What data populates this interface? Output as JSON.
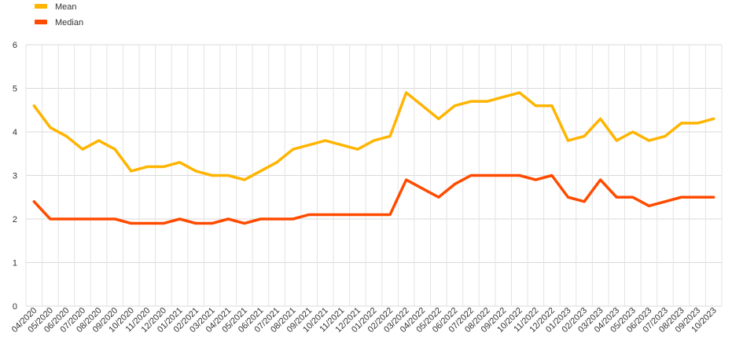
{
  "chart_data": {
    "type": "line",
    "x": [
      "04/2020",
      "05/2020",
      "06/2020",
      "07/2020",
      "08/2020",
      "09/2020",
      "10/2020",
      "11/2020",
      "12/2020",
      "01/2021",
      "02/2021",
      "03/2021",
      "04/2021",
      "05/2021",
      "06/2021",
      "07/2021",
      "08/2021",
      "09/2021",
      "10/2021",
      "11/2021",
      "12/2021",
      "01/2022",
      "02/2022",
      "03/2022",
      "04/2022",
      "05/2022",
      "06/2022",
      "07/2022",
      "08/2022",
      "09/2022",
      "10/2022",
      "11/2022",
      "12/2022",
      "01/2023",
      "02/2023",
      "03/2023",
      "04/2023",
      "05/2023",
      "06/2023",
      "07/2023",
      "08/2023",
      "09/2023",
      "10/2023"
    ],
    "series": [
      {
        "name": "Mean",
        "color": "#FFB400",
        "values": [
          4.6,
          4.1,
          3.9,
          3.6,
          3.8,
          3.6,
          3.1,
          3.2,
          3.2,
          3.3,
          3.1,
          3.0,
          3.0,
          2.9,
          3.1,
          3.3,
          3.6,
          3.7,
          3.8,
          3.7,
          3.6,
          3.8,
          3.9,
          4.9,
          4.6,
          4.3,
          4.6,
          4.7,
          4.7,
          4.8,
          4.9,
          4.6,
          4.6,
          3.8,
          3.9,
          4.3,
          3.8,
          4.0,
          3.8,
          3.9,
          4.2,
          4.2,
          4.3
        ]
      },
      {
        "name": "Median",
        "color": "#FF4B00",
        "values": [
          2.4,
          2.0,
          2.0,
          2.0,
          2.0,
          2.0,
          1.9,
          1.9,
          1.9,
          2.0,
          1.9,
          1.9,
          2.0,
          1.9,
          2.0,
          2.0,
          2.0,
          2.1,
          2.1,
          2.1,
          2.1,
          2.1,
          2.1,
          2.9,
          2.7,
          2.5,
          2.8,
          3.0,
          3.0,
          3.0,
          3.0,
          2.9,
          3.0,
          2.5,
          2.4,
          2.9,
          2.5,
          2.5,
          2.3,
          2.4,
          2.5,
          2.5,
          2.5
        ]
      }
    ],
    "y_ticks": [
      "0",
      "1",
      "2",
      "3",
      "4",
      "5",
      "6"
    ],
    "ylim": [
      0,
      6
    ],
    "grid": true,
    "legend_position": "top-left"
  }
}
